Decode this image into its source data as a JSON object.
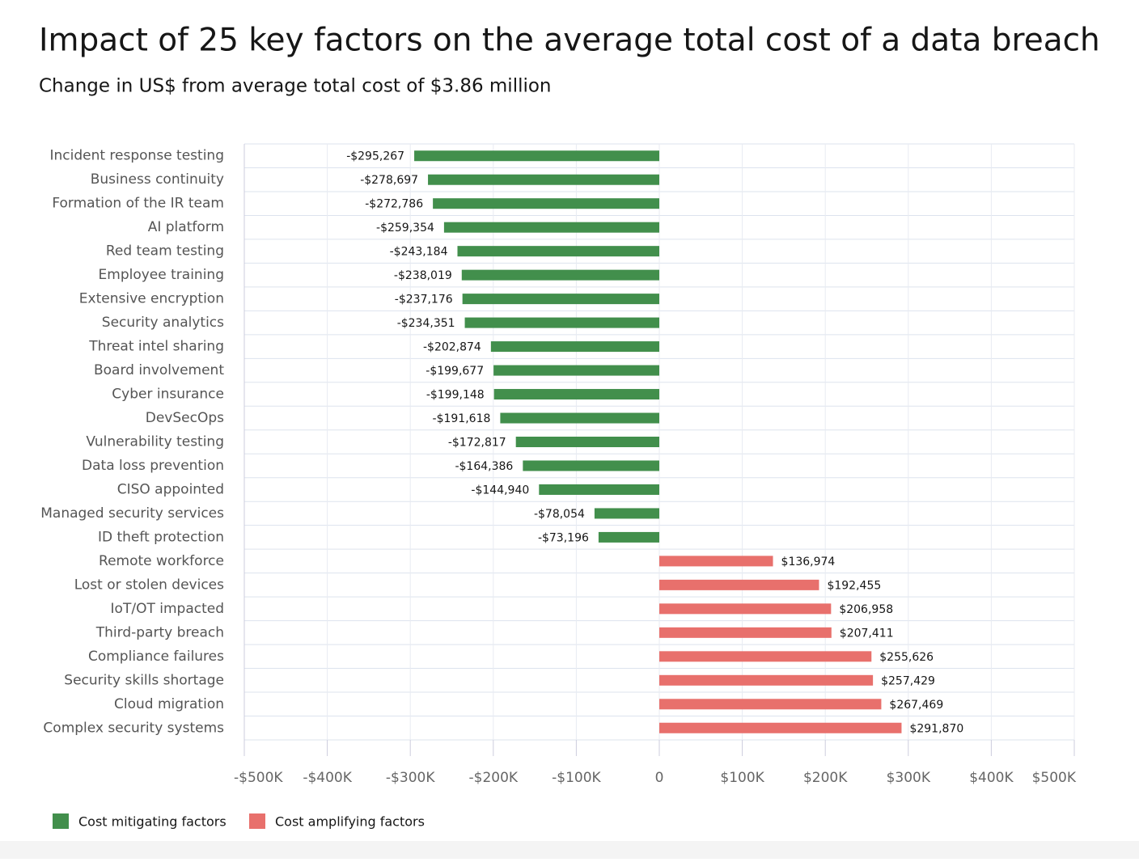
{
  "chart_data": {
    "type": "bar",
    "orientation": "horizontal",
    "title": "Impact of 25 key factors on the average total cost of a data breach",
    "subtitle": "Change in US$ from average total cost of $3.86 million",
    "categories": [
      "Incident response testing",
      "Business continuity",
      "Formation of the IR team",
      "AI platform",
      "Red team testing",
      "Employee training",
      "Extensive encryption",
      "Security analytics",
      "Threat intel sharing",
      "Board involvement",
      "Cyber insurance",
      "DevSecOps",
      "Vulnerability testing",
      "Data loss prevention",
      "CISO appointed",
      "Managed security services",
      "ID theft protection",
      "Remote workforce",
      "Lost or stolen devices",
      "IoT/OT impacted",
      "Third-party breach",
      "Compliance failures",
      "Security skills shortage",
      "Cloud migration",
      "Complex security systems"
    ],
    "series": [
      {
        "name": "Cost mitigating factors",
        "color": "#428f4c",
        "values": [
          -295267,
          -278697,
          -272786,
          -259354,
          -243184,
          -238019,
          -237176,
          -234351,
          -202874,
          -199677,
          -199148,
          -191618,
          -172817,
          -164386,
          -144940,
          -78054,
          -73196,
          null,
          null,
          null,
          null,
          null,
          null,
          null,
          null
        ],
        "value_labels": [
          "-$295,267",
          "-$278,697",
          "-$272,786",
          "-$259,354",
          "-$243,184",
          "-$238,019",
          "-$237,176",
          "-$234,351",
          "-$202,874",
          "-$199,677",
          "-$199,148",
          "-$191,618",
          "-$172,817",
          "-$164,386",
          "-$144,940",
          "-$78,054",
          "-$73,196",
          null,
          null,
          null,
          null,
          null,
          null,
          null,
          null
        ]
      },
      {
        "name": "Cost amplifying factors",
        "color": "#e8706c",
        "values": [
          null,
          null,
          null,
          null,
          null,
          null,
          null,
          null,
          null,
          null,
          null,
          null,
          null,
          null,
          null,
          null,
          null,
          136974,
          192455,
          206958,
          207411,
          255626,
          257429,
          267469,
          291870
        ],
        "value_labels": [
          null,
          null,
          null,
          null,
          null,
          null,
          null,
          null,
          null,
          null,
          null,
          null,
          null,
          null,
          null,
          null,
          null,
          "$136,974",
          "$192,455",
          "$206,958",
          "$207,411",
          "$255,626",
          "$257,429",
          "$267,469",
          "$291,870"
        ]
      }
    ],
    "xlim": [
      -500000,
      500000
    ],
    "xticks": [
      {
        "value": -500000,
        "label": "-$500K"
      },
      {
        "value": -400000,
        "label": "-$400K"
      },
      {
        "value": -300000,
        "label": "-$300K"
      },
      {
        "value": -200000,
        "label": "-$200K"
      },
      {
        "value": -100000,
        "label": "-$100K"
      },
      0,
      {
        "value": 100000,
        "label": "$100K"
      },
      {
        "value": 200000,
        "label": "$200K"
      },
      {
        "value": 300000,
        "label": "$300K"
      },
      {
        "value": 400000,
        "label": "$400K"
      },
      {
        "value": 500000,
        "label": "$500K"
      }
    ],
    "grid": true,
    "legend": "bottom-left"
  }
}
